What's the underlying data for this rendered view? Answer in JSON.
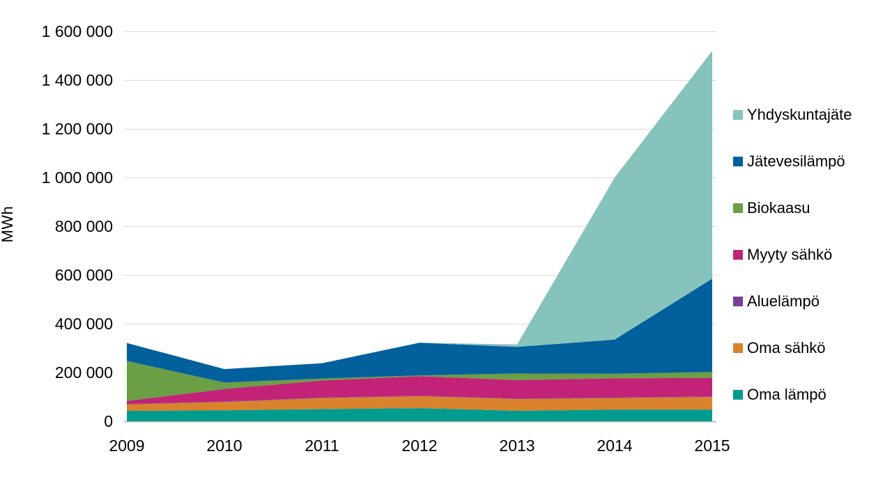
{
  "chart_data": {
    "type": "area",
    "stacked": true,
    "title": "",
    "xlabel": "",
    "ylabel": "MWh",
    "x": [
      2009,
      2010,
      2011,
      2012,
      2013,
      2014,
      2015
    ],
    "series": [
      {
        "name": "Oma lämpö",
        "color": "#029C8F",
        "values": [
          43000,
          45000,
          50000,
          54000,
          43000,
          48000,
          48000
        ]
      },
      {
        "name": "Oma sähkö",
        "color": "#DA822C",
        "values": [
          26000,
          34000,
          45000,
          49000,
          48000,
          47000,
          52000
        ]
      },
      {
        "name": "Aluelämpö",
        "color": "#7A4094",
        "values": [
          2000,
          2000,
          2000,
          2000,
          2000,
          2000,
          2000
        ]
      },
      {
        "name": "Myyty sähkö",
        "color": "#C22277",
        "values": [
          12000,
          51000,
          70000,
          80000,
          76000,
          79000,
          76000
        ]
      },
      {
        "name": "Biokaasu",
        "color": "#6B9E45",
        "values": [
          164000,
          27000,
          8000,
          3000,
          27000,
          19000,
          24000
        ]
      },
      {
        "name": "Jätevesilämpö",
        "color": "#02609C",
        "values": [
          74000,
          55000,
          63000,
          134000,
          109000,
          140000,
          383000
        ]
      },
      {
        "name": "Yhdyskuntajäte",
        "color": "#86C3BD",
        "values": [
          0,
          0,
          0,
          0,
          10000,
          665000,
          935000
        ]
      }
    ],
    "ylim": [
      0,
      1600000
    ],
    "ytick_step": 200000,
    "ytick_labels": [
      "0",
      "200 000",
      "400 000",
      "600 000",
      "800 000",
      "1 000 000",
      "1 200 000",
      "1 400 000",
      "1 600 000"
    ],
    "xtick_labels": [
      "2009",
      "2010",
      "2011",
      "2012",
      "2013",
      "2014",
      "2015"
    ],
    "grid": true,
    "legend_position": "right",
    "legend_order_top_to_bottom": [
      "Yhdyskuntajäte",
      "Jätevesilämpö",
      "Biokaasu",
      "Myyty sähkö",
      "Aluelämpö",
      "Oma sähkö",
      "Oma lämpö"
    ]
  },
  "colors": {
    "gridline": "#D9D9D9",
    "axis_line": "#B3B3B3",
    "text": "#000000",
    "background": "#FFFFFF"
  }
}
